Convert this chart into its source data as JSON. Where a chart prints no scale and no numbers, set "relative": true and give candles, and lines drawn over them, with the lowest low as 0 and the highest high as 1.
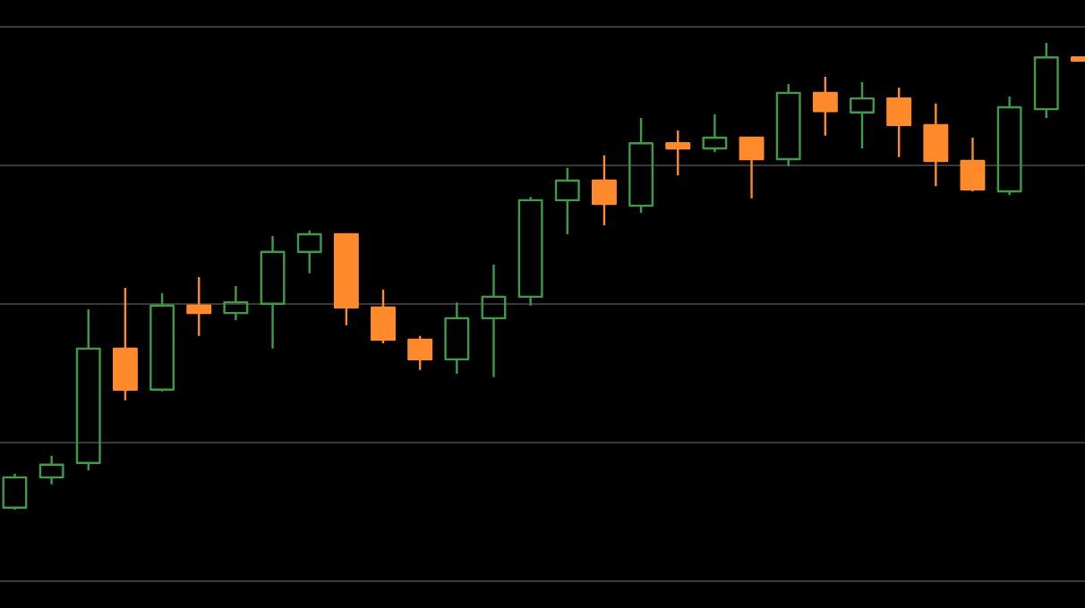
{
  "chart_data": {
    "type": "candlestick",
    "relative": true,
    "grid": "y",
    "categories": [
      null,
      null,
      null,
      null,
      null,
      null,
      null,
      null,
      null,
      null,
      null,
      null,
      null,
      null,
      null,
      null,
      null,
      null,
      null,
      null,
      null,
      null,
      null,
      null,
      null,
      null,
      null,
      null,
      null,
      null
    ],
    "ohlc": [
      [
        0.004,
        0.077,
        0,
        0.069
      ],
      [
        0.069,
        0.115,
        0.054,
        0.096
      ],
      [
        0.1,
        0.429,
        0.084,
        0.345
      ],
      [
        0.345,
        0.475,
        0.234,
        0.257
      ],
      [
        0.257,
        0.464,
        0.253,
        0.437
      ],
      [
        0.437,
        0.498,
        0.372,
        0.421
      ],
      [
        0.421,
        0.479,
        0.406,
        0.444
      ],
      [
        0.441,
        0.586,
        0.345,
        0.552
      ],
      [
        0.552,
        0.598,
        0.506,
        0.59
      ],
      [
        0.59,
        0.59,
        0.395,
        0.433
      ],
      [
        0.433,
        0.471,
        0.356,
        0.364
      ],
      [
        0.364,
        0.372,
        0.299,
        0.322
      ],
      [
        0.322,
        0.444,
        0.291,
        0.41
      ],
      [
        0.41,
        0.525,
        0.284,
        0.456
      ],
      [
        0.456,
        0.67,
        0.437,
        0.663
      ],
      [
        0.663,
        0.732,
        0.59,
        0.705
      ],
      [
        0.705,
        0.759,
        0.609,
        0.655
      ],
      [
        0.651,
        0.839,
        0.636,
        0.785
      ],
      [
        0.785,
        0.812,
        0.716,
        0.774
      ],
      [
        0.774,
        0.847,
        0.766,
        0.797
      ],
      [
        0.797,
        0.797,
        0.667,
        0.751
      ],
      [
        0.751,
        0.912,
        0.736,
        0.893
      ],
      [
        0.893,
        0.927,
        0.801,
        0.854
      ],
      [
        0.851,
        0.916,
        0.774,
        0.881
      ],
      [
        0.881,
        0.904,
        0.755,
        0.824
      ],
      [
        0.824,
        0.87,
        0.693,
        0.747
      ],
      [
        0.747,
        0.797,
        0.682,
        0.686
      ],
      [
        0.682,
        0.885,
        0.674,
        0.862
      ],
      [
        0.858,
        1.0,
        0.839,
        0.969
      ],
      [
        0.969,
        0.969,
        0.962,
        0.962
      ]
    ],
    "colors": [
      "#3e9b47",
      "#3e9b47",
      "#3e9b47",
      "#ff8a2b",
      "#3e9b47",
      "#ff8a2b",
      "#3e9b47",
      "#3e9b47",
      "#3e9b47",
      "#ff8a2b",
      "#ff8a2b",
      "#ff8a2b",
      "#3e9b47",
      "#3e9b47",
      "#3e9b47",
      "#3e9b47",
      "#ff8a2b",
      "#3e9b47",
      "#ff8a2b",
      "#3e9b47",
      "#ff8a2b",
      "#3e9b47",
      "#ff8a2b",
      "#3e9b47",
      "#ff8a2b",
      "#ff8a2b",
      "#ff8a2b",
      "#3e9b47",
      "#3e9b47",
      "#ff8a2b"
    ]
  }
}
